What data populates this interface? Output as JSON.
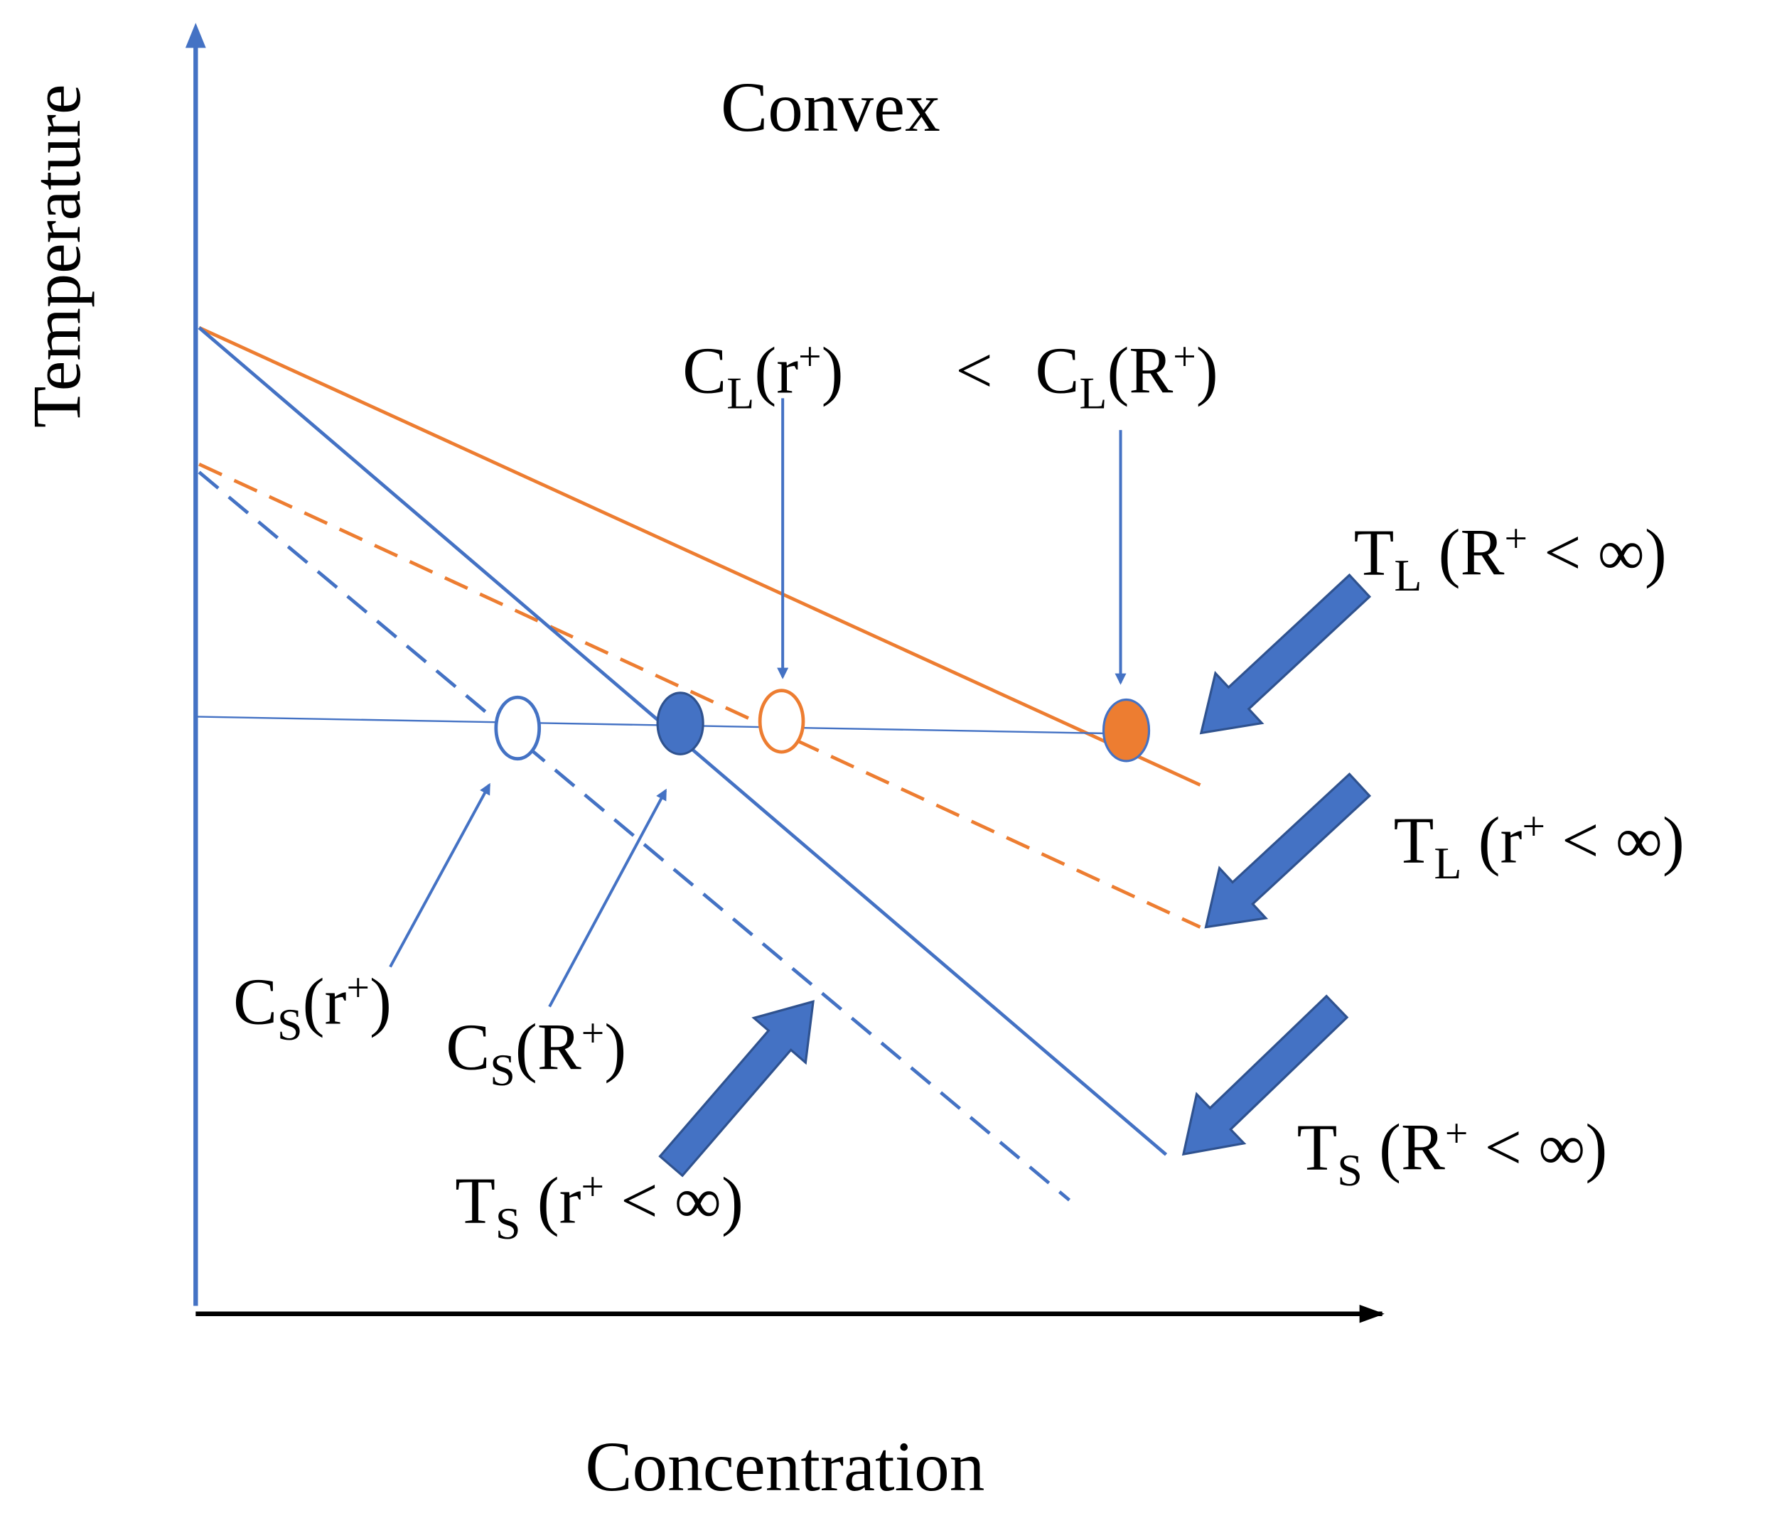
{
  "title": "Convex",
  "axes": {
    "y_label": "Temperature",
    "x_label": "Concentration"
  },
  "labels": {
    "cl_r": {
      "symbol": "C",
      "subscript": "L",
      "open": "(r",
      "superscript": "+",
      "close": ")"
    },
    "less": "<",
    "cl_R": {
      "symbol": "C",
      "subscript": "L",
      "open": "(R",
      "superscript": "+",
      "close": ")"
    },
    "tl_R": {
      "symbol": "T",
      "subscript": "L",
      "open": " (R",
      "superscript": "+",
      "close": " < ∞)"
    },
    "tl_r": {
      "symbol": "T",
      "subscript": "L",
      "open": " (r",
      "superscript": "+",
      "close": " < ∞)"
    },
    "ts_R": {
      "symbol": "T",
      "subscript": "S",
      "open": " (R",
      "superscript": "+",
      "close": " < ∞)"
    },
    "ts_r": {
      "symbol": "T",
      "subscript": "S",
      "open": " (r",
      "superscript": "+",
      "close": " < ∞)"
    },
    "cs_r": {
      "symbol": "C",
      "subscript": "S",
      "open": "(r",
      "superscript": "+",
      "close": ")"
    },
    "cs_R": {
      "symbol": "C",
      "subscript": "S",
      "open": "(R",
      "superscript": "+",
      "close": ")"
    }
  }
}
